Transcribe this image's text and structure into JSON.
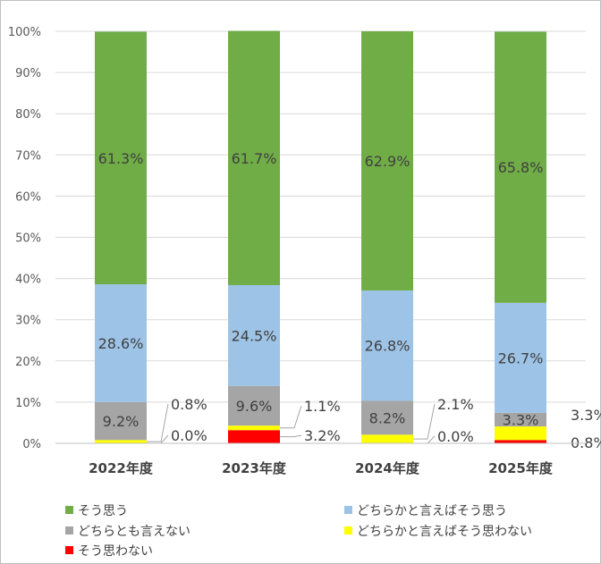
{
  "chart_data": {
    "type": "bar",
    "stacked": true,
    "percent": true,
    "categories": [
      "2022年度",
      "2023年度",
      "2024年度",
      "2025年度"
    ],
    "ylim": [
      0,
      100
    ],
    "yticks": [
      "0%",
      "10%",
      "20%",
      "30%",
      "40%",
      "50%",
      "60%",
      "70%",
      "80%",
      "90%",
      "100%"
    ],
    "grid": true,
    "legend_position": "bottom",
    "series": [
      {
        "name": "そう思わない",
        "color": "#ff0000",
        "values": [
          0.0,
          3.2,
          0.0,
          0.8
        ],
        "labels": [
          "0.0%",
          "3.2%",
          "0.0%",
          "0.8%"
        ]
      },
      {
        "name": "どちらかと言えばそう思わない",
        "color": "#ffff00",
        "values": [
          0.8,
          1.1,
          2.1,
          3.3
        ],
        "labels": [
          "0.8%",
          "1.1%",
          "2.1%",
          "3.3%"
        ]
      },
      {
        "name": "どちらとも言えない",
        "color": "#a5a5a5",
        "values": [
          9.2,
          9.6,
          8.2,
          3.3
        ],
        "labels": [
          "9.2%",
          "9.6%",
          "8.2%",
          "3.3%"
        ]
      },
      {
        "name": "どちらかと言えばそう思う",
        "color": "#9dc3e6",
        "values": [
          28.6,
          24.5,
          26.8,
          26.7
        ],
        "labels": [
          "28.6%",
          "24.5%",
          "26.8%",
          "26.7%"
        ]
      },
      {
        "name": "そう思う",
        "color": "#70ad47",
        "values": [
          61.3,
          61.7,
          62.9,
          65.8
        ],
        "labels": [
          "61.3%",
          "61.7%",
          "62.9%",
          "65.8%"
        ]
      }
    ],
    "legend": [
      {
        "name": "そう思う",
        "color": "#70ad47"
      },
      {
        "name": "どちらかと言えばそう思う",
        "color": "#9dc3e6"
      },
      {
        "name": "どちらとも言えない",
        "color": "#a5a5a5"
      },
      {
        "name": "どちらかと言えばそう思わない",
        "color": "#ffff00"
      },
      {
        "name": "そう思わない",
        "color": "#ff0000"
      }
    ]
  }
}
